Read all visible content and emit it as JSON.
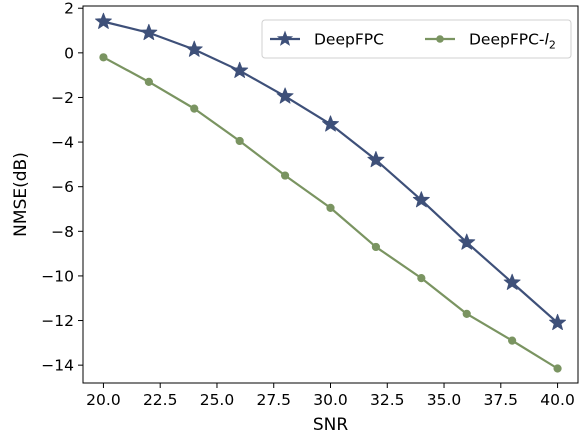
{
  "chart_data": {
    "type": "line",
    "xlabel": "SNR",
    "ylabel": "NMSE(dB)",
    "xlim": [
      19.1,
      40.9
    ],
    "ylim": [
      -14.8,
      2.1
    ],
    "x_ticks": [
      20.0,
      22.5,
      25.0,
      27.5,
      30.0,
      32.5,
      35.0,
      37.5,
      40.0
    ],
    "x_tick_labels": [
      "20.0",
      "22.5",
      "25.0",
      "27.5",
      "30.0",
      "32.5",
      "35.0",
      "37.5",
      "40.0"
    ],
    "y_ticks": [
      2,
      0,
      -2,
      -4,
      -6,
      -8,
      -10,
      -12,
      -14
    ],
    "y_tick_labels": [
      "2",
      "0",
      "−2",
      "−4",
      "−6",
      "−8",
      "−10",
      "−12",
      "−14"
    ],
    "x": [
      20,
      22,
      24,
      26,
      28,
      30,
      32,
      34,
      36,
      38,
      40
    ],
    "series": [
      {
        "name": "DeepFPC",
        "marker": "star",
        "color": "#3e5079",
        "values": [
          1.4,
          0.9,
          0.15,
          -0.8,
          -1.95,
          -3.2,
          -4.8,
          -6.6,
          -8.5,
          -10.3,
          -12.1
        ]
      },
      {
        "name": "DeepFPC-l2",
        "name_base": "DeepFPC-",
        "name_italic": "l",
        "name_sub": "2",
        "marker": "circle",
        "color": "#7a9461",
        "values": [
          -0.2,
          -1.3,
          -2.5,
          -3.95,
          -5.5,
          -6.95,
          -8.7,
          -10.1,
          -11.7,
          -12.9,
          -14.15
        ]
      }
    ],
    "legend_position": "top-right",
    "grid": false
  }
}
